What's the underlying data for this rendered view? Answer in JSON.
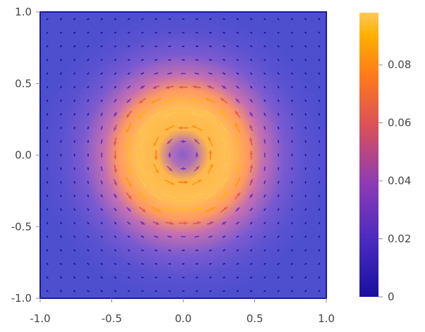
{
  "chart_data": {
    "type": "heatmap",
    "subtype": "vector-density-plot",
    "title": "",
    "xlabel": "",
    "ylabel": "",
    "xlim": [
      -1.0,
      1.0
    ],
    "ylim": [
      -1.0,
      1.0
    ],
    "x_ticks": [
      "-1.0",
      "-0.5",
      "0.0",
      "0.5",
      "1.0"
    ],
    "y_ticks": [
      "1.0",
      "0.5",
      "0.0",
      "-0.5",
      "-1.0"
    ],
    "x_tick_values": [
      -1.0,
      -0.5,
      0.0,
      0.5,
      1.0
    ],
    "y_tick_values": [
      1.0,
      0.5,
      0.0,
      -0.5,
      -1.0
    ],
    "field": {
      "description": "rotational (circulating) vector field, magnitude peaks on a ring",
      "ring_radius": 0.32,
      "ring_width": 0.2,
      "max_magnitude": 0.098,
      "grid_count": 21
    },
    "colorbar": {
      "range": [
        0,
        0.098
      ],
      "tick_labels": [
        "0",
        "0.02",
        "0.04",
        "0.06",
        "0.08"
      ],
      "tick_values": [
        0,
        0.02,
        0.04,
        0.06,
        0.08
      ],
      "colors": [
        "#1a0f9e",
        "#4a2bbf",
        "#8e3bb5",
        "#d9505a",
        "#ff7a1a",
        "#ffb000",
        "#ffc85a"
      ]
    },
    "grid": false,
    "legend": "colorbar-right"
  }
}
